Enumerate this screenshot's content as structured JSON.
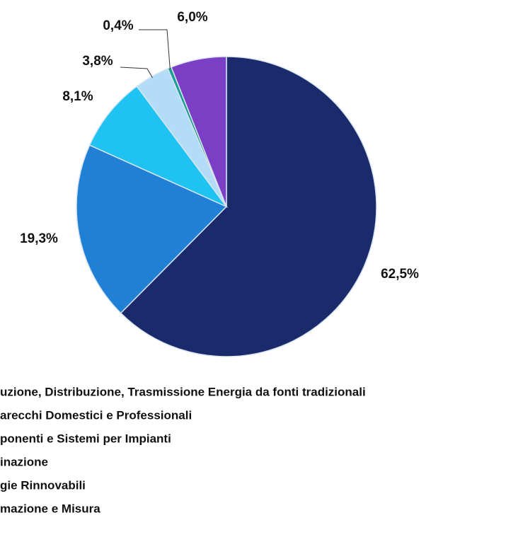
{
  "chart_data": {
    "type": "pie",
    "categories": [
      "uzione, Distribuzione, Trasmissione Energia da fonti tradizionali",
      "arecchi Domestici e Professionali",
      "ponenti e Sistemi per Impianti",
      "inazione",
      "gie Rinnovabili",
      "mazione e Misura"
    ],
    "values": [
      62.5,
      19.3,
      8.1,
      3.8,
      0.4,
      6.0
    ],
    "value_labels": [
      "62,5%",
      "19,3%",
      "8,1%",
      "3,8%",
      "0,4%",
      "6,0%"
    ],
    "colors": [
      "#1b2a6b",
      "#1f80d6",
      "#1ec3f2",
      "#b3dcf7",
      "#1a9e96",
      "#7b3fc6"
    ]
  }
}
